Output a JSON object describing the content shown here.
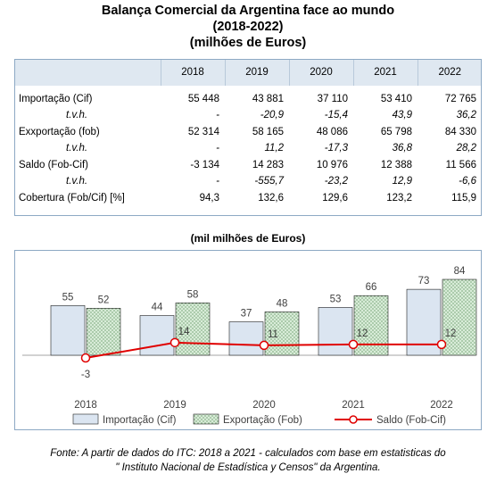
{
  "title": {
    "line1": "Balança Comercial da Argentina face ao mundo",
    "line2": "(2018-2022)",
    "line3": "(milhões de Euros)"
  },
  "table": {
    "columns": [
      "",
      "2018",
      "2019",
      "2020",
      "2021",
      "2022"
    ],
    "rows": [
      {
        "label": "Importação (Cif)",
        "sub": false,
        "cells": [
          "55 448",
          "43 881",
          "37 110",
          "53 410",
          "72 765"
        ]
      },
      {
        "label": "t.v.h.",
        "sub": true,
        "cells": [
          "-",
          "-20,9",
          "-15,4",
          "43,9",
          "36,2"
        ]
      },
      {
        "label": "Exxportação (fob)",
        "sub": false,
        "cells": [
          "52 314",
          "58 165",
          "48 086",
          "65 798",
          "84 330"
        ]
      },
      {
        "label": "t.v.h.",
        "sub": true,
        "cells": [
          "-",
          "11,2",
          "-17,3",
          "36,8",
          "28,2"
        ]
      },
      {
        "label": "Saldo (Fob-Cif)",
        "sub": false,
        "cells": [
          "-3 134",
          "14 283",
          "10 976",
          "12 388",
          "11 566"
        ]
      },
      {
        "label": "t.v.h.",
        "sub": true,
        "cells": [
          "-",
          "-555,7",
          "-23,2",
          "12,9",
          "-6,6"
        ]
      },
      {
        "label": "Cobertura (Fob/Cif) [%]",
        "sub": false,
        "cells": [
          "94,3",
          "132,6",
          "129,6",
          "123,2",
          "115,9"
        ]
      }
    ]
  },
  "chart_data": {
    "type": "bar",
    "title": "(mil milhões de Euros)",
    "categories": [
      "2018",
      "2019",
      "2020",
      "2021",
      "2022"
    ],
    "ylim": [
      -3,
      84
    ],
    "grid": false,
    "legend_position": "bottom",
    "series": [
      {
        "name": "Importação (Cif)",
        "kind": "bar",
        "values": [
          55,
          44,
          37,
          53,
          73
        ],
        "color": "#dbe5f1"
      },
      {
        "name": "Exportação (Fob)",
        "kind": "bar",
        "values": [
          52,
          58,
          48,
          66,
          84
        ],
        "color": "#d8ecd8"
      },
      {
        "name": "Saldo (Fob-Cif)",
        "kind": "line",
        "values": [
          -3,
          14,
          11,
          12,
          12
        ],
        "color": "#e00000"
      }
    ]
  },
  "source": {
    "line1": "Fonte: A partir de dados do ITC: 2018 a 2021 - calculados com base em estatisticas do",
    "line2": "\" Instituto Nacional de Estadística y Censos\" da Argentina."
  }
}
